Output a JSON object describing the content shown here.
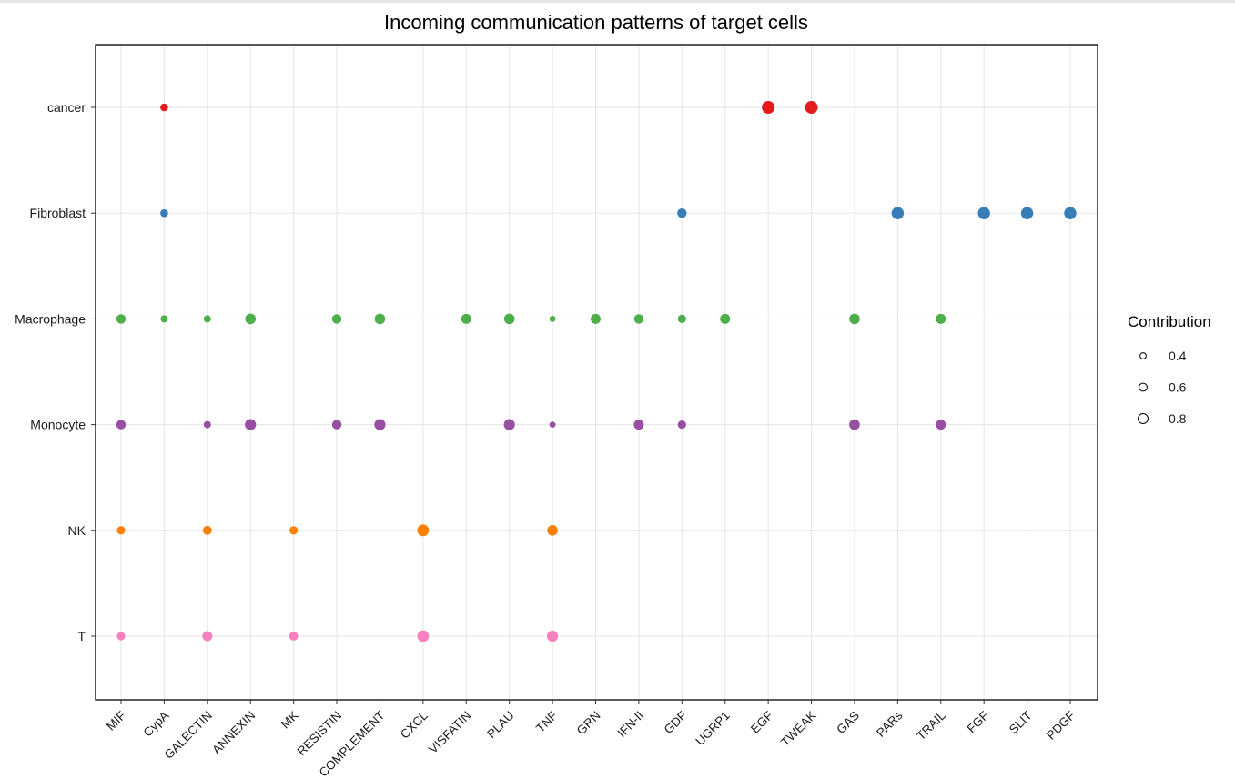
{
  "chart_data": {
    "type": "scatter",
    "title": "Incoming communication patterns of target cells",
    "xlabel": "",
    "ylabel": "",
    "grid": true,
    "legend_position": "right",
    "categories_x": [
      "MIF",
      "CypA",
      "GALECTIN",
      "ANNEXIN",
      "MK",
      "RESISTIN",
      "COMPLEMENT",
      "CXCL",
      "VISFATIN",
      "PLAU",
      "TNF",
      "GRN",
      "IFN-II",
      "GDF",
      "UGRP1",
      "EGF",
      "TWEAK",
      "GAS",
      "PARs",
      "TRAIL",
      "FGF",
      "SLIT",
      "PDGF"
    ],
    "categories_y": [
      "cancer",
      "Fibroblast",
      "Macrophage",
      "Monocyte",
      "NK",
      "T"
    ],
    "series": [
      {
        "name": "cancer",
        "color": "#E41A1C",
        "points": [
          [
            "CypA",
            0.45
          ],
          [
            "EGF",
            0.9
          ],
          [
            "TWEAK",
            0.9
          ]
        ]
      },
      {
        "name": "Fibroblast",
        "color": "#377EB8",
        "points": [
          [
            "CypA",
            0.45
          ],
          [
            "GDF",
            0.6
          ],
          [
            "PARs",
            0.85
          ],
          [
            "FGF",
            0.85
          ],
          [
            "SLIT",
            0.85
          ],
          [
            "PDGF",
            0.85
          ]
        ]
      },
      {
        "name": "Macrophage",
        "color": "#4DAF4A",
        "points": [
          [
            "MIF",
            0.6
          ],
          [
            "CypA",
            0.4
          ],
          [
            "GALECTIN",
            0.4
          ],
          [
            "ANNEXIN",
            0.7
          ],
          [
            "RESISTIN",
            0.6
          ],
          [
            "COMPLEMENT",
            0.7
          ],
          [
            "VISFATIN",
            0.65
          ],
          [
            "PLAU",
            0.7
          ],
          [
            "TNF",
            0.3
          ],
          [
            "GRN",
            0.65
          ],
          [
            "IFN-II",
            0.6
          ],
          [
            "GDF",
            0.5
          ],
          [
            "UGRP1",
            0.65
          ],
          [
            "GAS",
            0.7
          ],
          [
            "TRAIL",
            0.65
          ]
        ]
      },
      {
        "name": "Monocyte",
        "color": "#984EA3",
        "points": [
          [
            "MIF",
            0.6
          ],
          [
            "GALECTIN",
            0.4
          ],
          [
            "ANNEXIN",
            0.75
          ],
          [
            "RESISTIN",
            0.6
          ],
          [
            "COMPLEMENT",
            0.75
          ],
          [
            "PLAU",
            0.75
          ],
          [
            "TNF",
            0.3
          ],
          [
            "IFN-II",
            0.65
          ],
          [
            "GDF",
            0.5
          ],
          [
            "GAS",
            0.7
          ],
          [
            "TRAIL",
            0.65
          ]
        ]
      },
      {
        "name": "NK",
        "color": "#FF7F00",
        "points": [
          [
            "MIF",
            0.5
          ],
          [
            "GALECTIN",
            0.55
          ],
          [
            "MK",
            0.5
          ],
          [
            "CXCL",
            0.8
          ],
          [
            "TNF",
            0.7
          ]
        ]
      },
      {
        "name": "T",
        "color": "#F781BF",
        "points": [
          [
            "MIF",
            0.5
          ],
          [
            "GALECTIN",
            0.65
          ],
          [
            "MK",
            0.55
          ],
          [
            "CXCL",
            0.8
          ],
          [
            "TNF",
            0.75
          ]
        ]
      }
    ],
    "size_legend": {
      "title": "Contribution",
      "entries": [
        {
          "label": "0.4",
          "value": 0.4
        },
        {
          "label": "0.6",
          "value": 0.6
        },
        {
          "label": "0.8",
          "value": 0.8
        }
      ]
    }
  }
}
